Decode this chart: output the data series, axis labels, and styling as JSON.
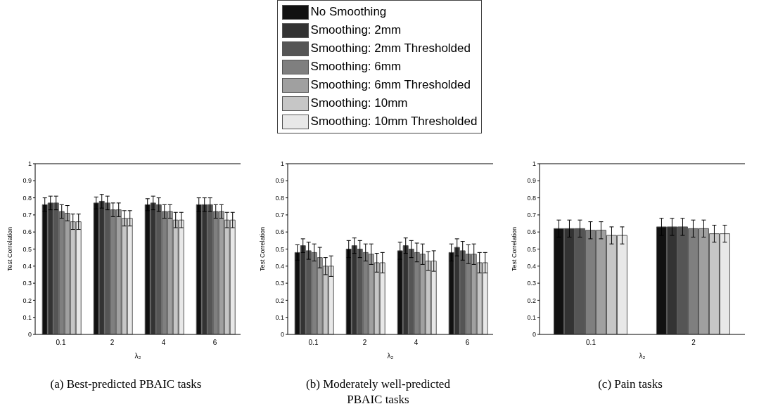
{
  "chart_data": [
    {
      "type": "bar",
      "title": "(a)  Best-predicted PBAIC tasks",
      "xlabel": "λ₂",
      "ylabel": "Test Correlation",
      "categories": [
        "0.1",
        "2",
        "4",
        "6"
      ],
      "ylim": [
        0,
        1
      ],
      "yticks": [
        0,
        0.1,
        0.2,
        0.3,
        0.4,
        0.5,
        0.6,
        0.7,
        0.8,
        0.9,
        1
      ],
      "grid": false,
      "legend": "top",
      "series": [
        {
          "name": "No Smoothing",
          "color": "#111111",
          "values": [
            0.76,
            0.77,
            0.76,
            0.76
          ],
          "errors": [
            0.04,
            0.035,
            0.035,
            0.04
          ]
        },
        {
          "name": "Smoothing: 2mm",
          "color": "#333333",
          "values": [
            0.77,
            0.78,
            0.77,
            0.76
          ],
          "errors": [
            0.04,
            0.04,
            0.04,
            0.04
          ]
        },
        {
          "name": "Smoothing: 2mm Thresholded",
          "color": "#555555",
          "values": [
            0.77,
            0.77,
            0.76,
            0.76
          ],
          "errors": [
            0.04,
            0.04,
            0.04,
            0.04
          ]
        },
        {
          "name": "Smoothing: 6mm",
          "color": "#7f7f7f",
          "values": [
            0.72,
            0.73,
            0.72,
            0.72
          ],
          "errors": [
            0.04,
            0.04,
            0.04,
            0.04
          ]
        },
        {
          "name": "Smoothing: 6mm Thresholded",
          "color": "#a0a0a0",
          "values": [
            0.71,
            0.73,
            0.72,
            0.72
          ],
          "errors": [
            0.045,
            0.04,
            0.04,
            0.04
          ]
        },
        {
          "name": "Smoothing: 10mm",
          "color": "#c6c6c6",
          "values": [
            0.66,
            0.68,
            0.67,
            0.67
          ],
          "errors": [
            0.045,
            0.045,
            0.045,
            0.045
          ]
        },
        {
          "name": "Smoothing: 10mm Thresholded",
          "color": "#e8e8e8",
          "values": [
            0.66,
            0.68,
            0.67,
            0.67
          ],
          "errors": [
            0.045,
            0.045,
            0.045,
            0.045
          ]
        }
      ]
    },
    {
      "type": "bar",
      "title": "(b)  Moderately well-predicted PBAIC tasks",
      "xlabel": "λ₂",
      "ylabel": "Test Correlation",
      "categories": [
        "0.1",
        "2",
        "4",
        "6"
      ],
      "ylim": [
        0,
        1
      ],
      "yticks": [
        0,
        0.1,
        0.2,
        0.3,
        0.4,
        0.5,
        0.6,
        0.7,
        0.8,
        0.9,
        1
      ],
      "grid": false,
      "series": [
        {
          "color": "#111111",
          "values": [
            0.48,
            0.5,
            0.49,
            0.48
          ],
          "errors": [
            0.045,
            0.05,
            0.05,
            0.05
          ]
        },
        {
          "color": "#333333",
          "values": [
            0.52,
            0.52,
            0.52,
            0.51
          ],
          "errors": [
            0.04,
            0.045,
            0.045,
            0.05
          ]
        },
        {
          "color": "#555555",
          "values": [
            0.49,
            0.5,
            0.5,
            0.49
          ],
          "errors": [
            0.05,
            0.05,
            0.05,
            0.055
          ]
        },
        {
          "color": "#7f7f7f",
          "values": [
            0.48,
            0.48,
            0.48,
            0.47
          ],
          "errors": [
            0.05,
            0.05,
            0.055,
            0.055
          ]
        },
        {
          "color": "#a0a0a0",
          "values": [
            0.45,
            0.47,
            0.47,
            0.47
          ],
          "errors": [
            0.06,
            0.06,
            0.06,
            0.06
          ]
        },
        {
          "color": "#c6c6c6",
          "values": [
            0.4,
            0.42,
            0.43,
            0.42
          ],
          "errors": [
            0.05,
            0.055,
            0.055,
            0.06
          ]
        },
        {
          "color": "#e8e8e8",
          "values": [
            0.4,
            0.42,
            0.43,
            0.42
          ],
          "errors": [
            0.06,
            0.06,
            0.06,
            0.06
          ]
        }
      ]
    },
    {
      "type": "bar",
      "title": "(c)  Pain tasks",
      "xlabel": "λ₂",
      "ylabel": "Test Correlation",
      "categories": [
        "0.1",
        "2"
      ],
      "ylim": [
        0,
        1
      ],
      "yticks": [
        0,
        0.1,
        0.2,
        0.3,
        0.4,
        0.5,
        0.6,
        0.7,
        0.8,
        0.9,
        1
      ],
      "grid": false,
      "series": [
        {
          "color": "#111111",
          "values": [
            0.62,
            0.63
          ],
          "errors": [
            0.05,
            0.05
          ]
        },
        {
          "color": "#333333",
          "values": [
            0.62,
            0.63
          ],
          "errors": [
            0.05,
            0.05
          ]
        },
        {
          "color": "#555555",
          "values": [
            0.62,
            0.63
          ],
          "errors": [
            0.05,
            0.05
          ]
        },
        {
          "color": "#7f7f7f",
          "values": [
            0.61,
            0.62
          ],
          "errors": [
            0.05,
            0.05
          ]
        },
        {
          "color": "#a0a0a0",
          "values": [
            0.61,
            0.62
          ],
          "errors": [
            0.05,
            0.05
          ]
        },
        {
          "color": "#c6c6c6",
          "values": [
            0.58,
            0.59
          ],
          "errors": [
            0.05,
            0.05
          ]
        },
        {
          "color": "#e8e8e8",
          "values": [
            0.58,
            0.59
          ],
          "errors": [
            0.05,
            0.05
          ]
        }
      ]
    }
  ]
}
